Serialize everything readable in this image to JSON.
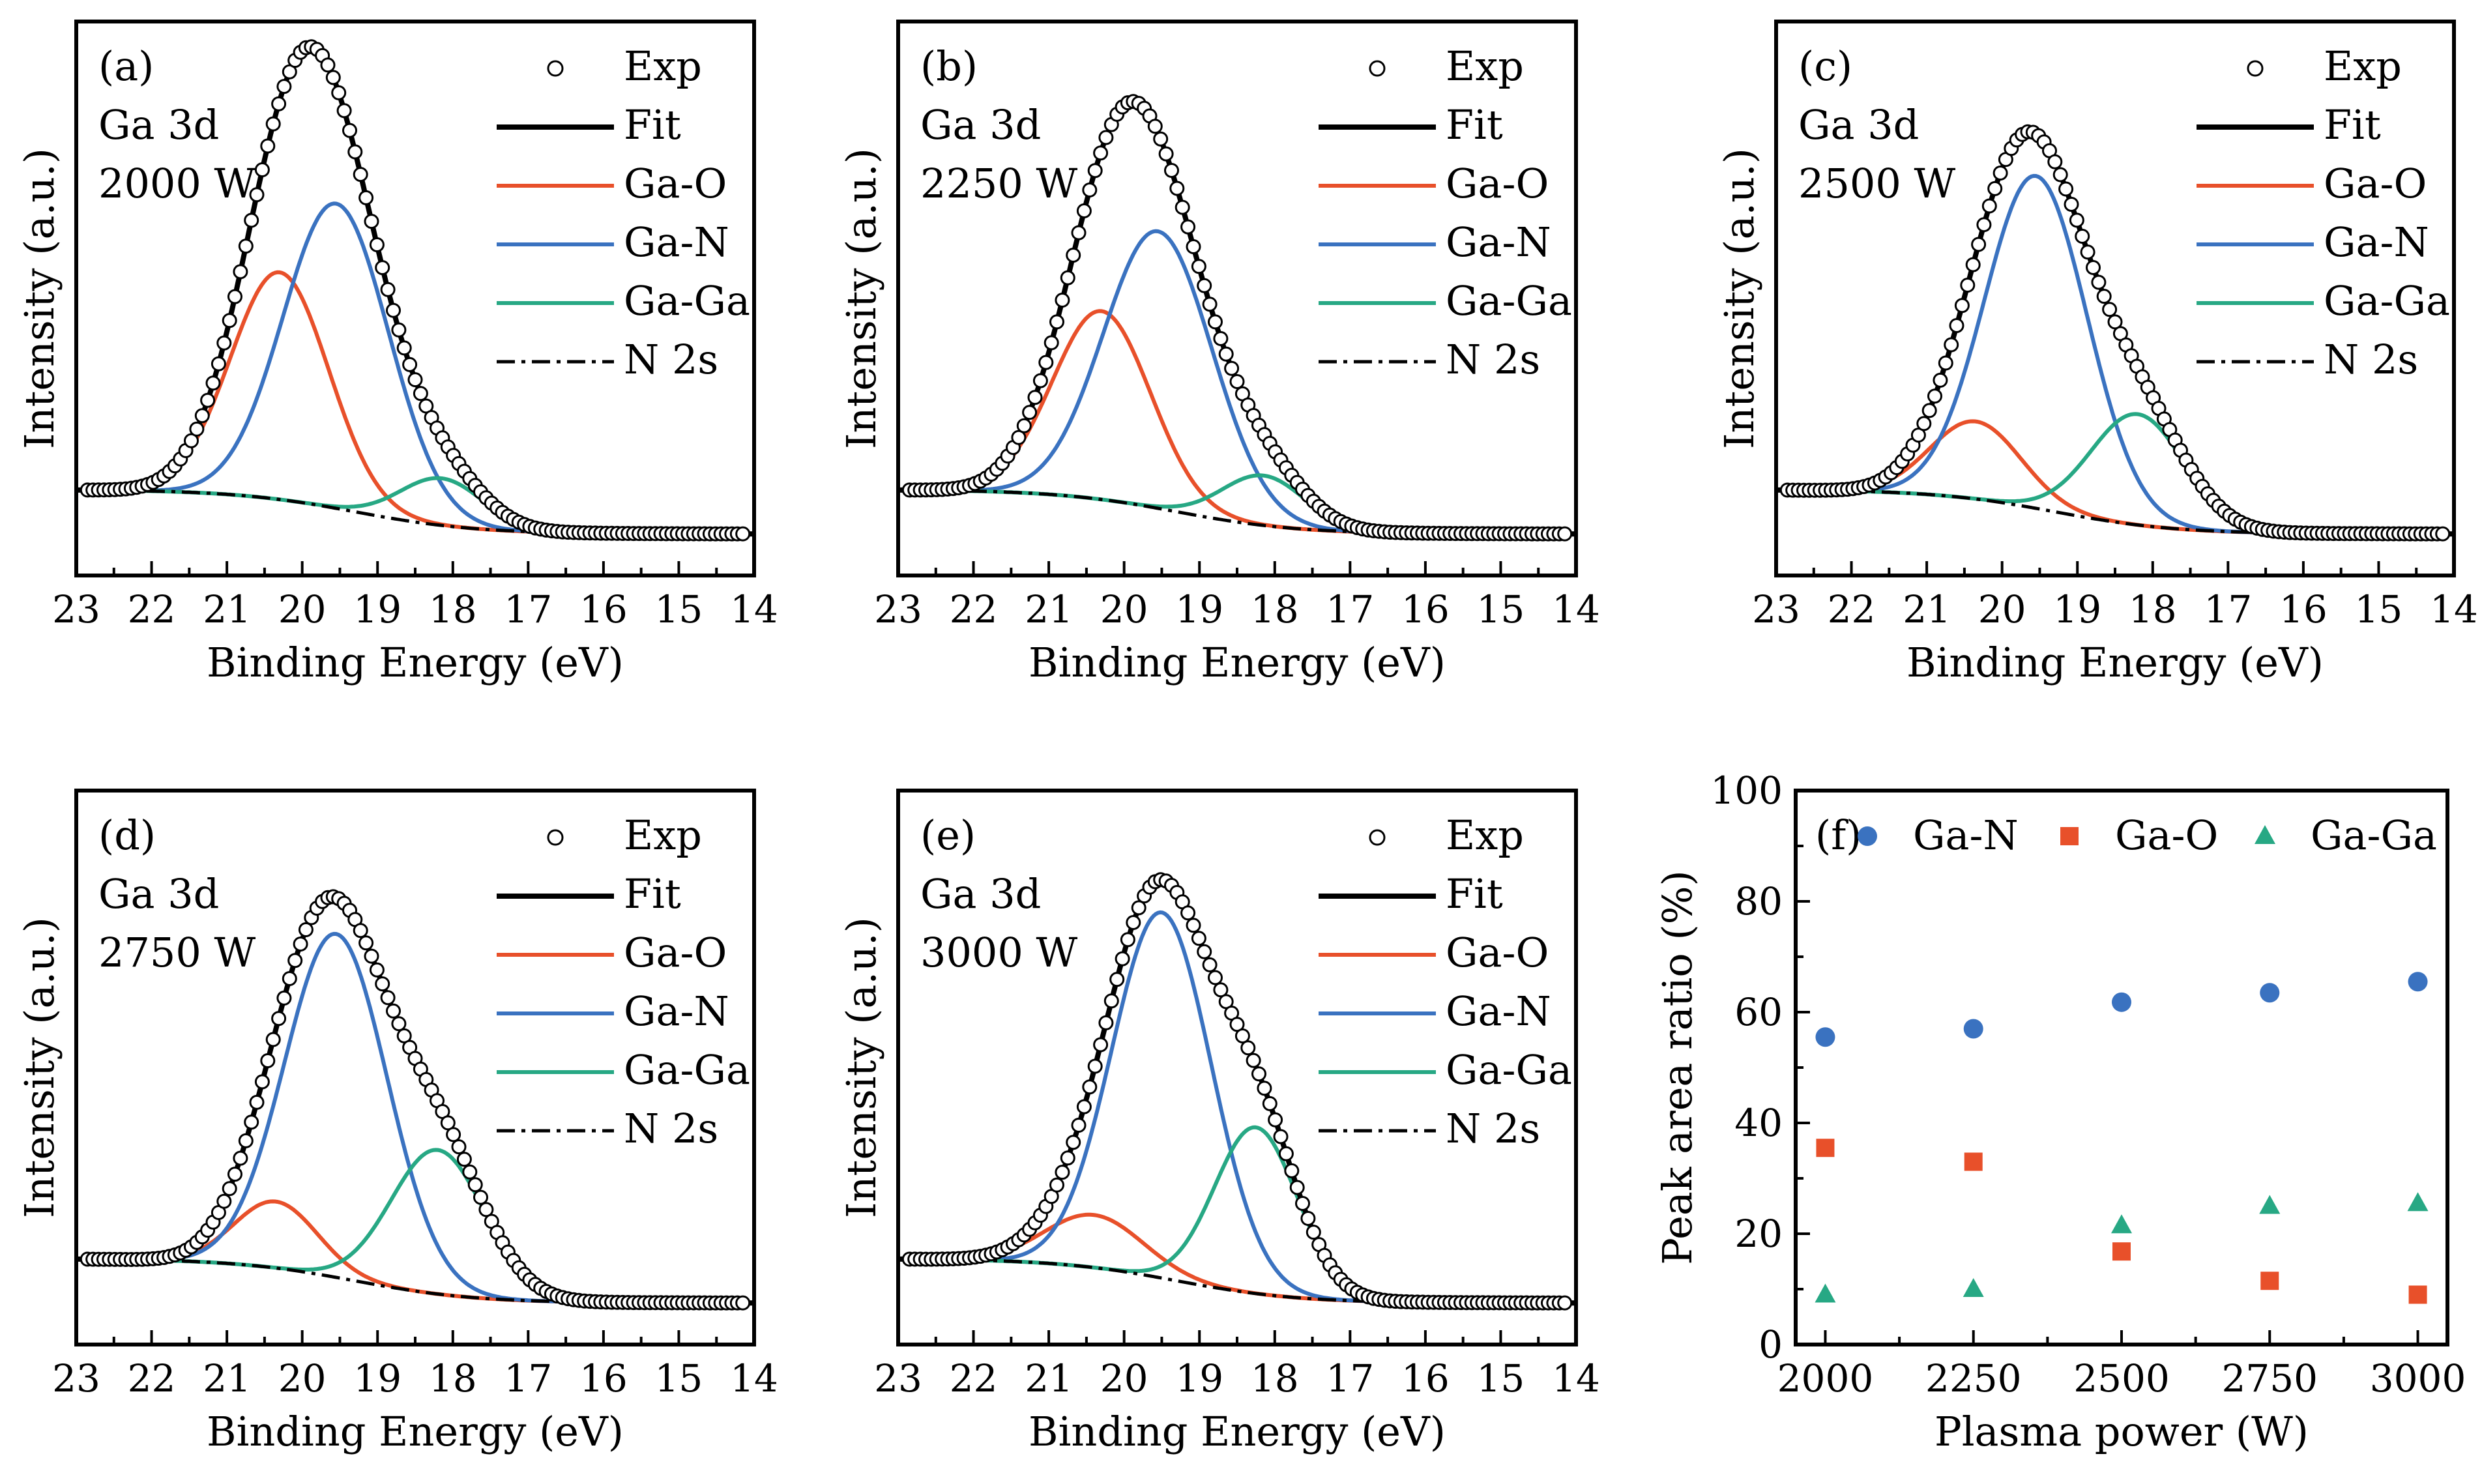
{
  "figure": {
    "colors": {
      "exp": "#000000",
      "fit": "#000000",
      "ga_o": "#e8502a",
      "ga_n": "#3a72c0",
      "ga_ga": "#27a884",
      "n2s": "#000000",
      "frame": "#000000"
    }
  },
  "chart_data": [
    {
      "type": "line",
      "panel": "(a)",
      "core_level": "Ga 3d",
      "power_label": "2000 W",
      "xlabel": "Binding Energy (eV)",
      "ylabel": "Intensity (a.u.)",
      "xlim": [
        23,
        14
      ],
      "ylim": [
        0,
        1
      ],
      "xticks": [
        "23",
        "22",
        "21",
        "20",
        "19",
        "18",
        "17",
        "16",
        "15",
        "14"
      ],
      "legend": [
        "Exp",
        "Fit",
        "Ga-O",
        "Ga-N",
        "Ga-Ga",
        "N 2s"
      ],
      "series": [
        {
          "name": "Ga-O",
          "center": 20.3,
          "height": 0.41,
          "width": 0.65
        },
        {
          "name": "Ga-N",
          "center": 19.55,
          "height": 0.55,
          "width": 0.7
        },
        {
          "name": "Ga-Ga",
          "center": 18.15,
          "height": 0.085,
          "width": 0.55
        }
      ],
      "background": {
        "name": "N 2s",
        "high": 0.155,
        "low": 0.075,
        "mid": 19.3,
        "step_width": 0.8
      }
    },
    {
      "type": "line",
      "panel": "(b)",
      "core_level": "Ga 3d",
      "power_label": "2250 W",
      "xlabel": "Binding Energy (eV)",
      "ylabel": "Intensity (a.u.)",
      "xlim": [
        23,
        14
      ],
      "ylim": [
        0,
        1
      ],
      "xticks": [
        "23",
        "22",
        "21",
        "20",
        "19",
        "18",
        "17",
        "16",
        "15",
        "14"
      ],
      "legend": [
        "Exp",
        "Fit",
        "Ga-O",
        "Ga-N",
        "Ga-Ga",
        "N 2s"
      ],
      "series": [
        {
          "name": "Ga-O",
          "center": 20.3,
          "height": 0.34,
          "width": 0.65
        },
        {
          "name": "Ga-N",
          "center": 19.55,
          "height": 0.5,
          "width": 0.72
        },
        {
          "name": "Ga-Ga",
          "center": 18.15,
          "height": 0.09,
          "width": 0.55
        }
      ],
      "background": {
        "name": "N 2s",
        "high": 0.155,
        "low": 0.075,
        "mid": 19.3,
        "step_width": 0.8
      }
    },
    {
      "type": "line",
      "panel": "(c)",
      "core_level": "Ga 3d",
      "power_label": "2500 W",
      "xlabel": "Binding Energy (eV)",
      "ylabel": "Intensity (a.u.)",
      "xlim": [
        23,
        14
      ],
      "ylim": [
        0,
        1
      ],
      "xticks": [
        "23",
        "22",
        "21",
        "20",
        "19",
        "18",
        "17",
        "16",
        "15",
        "14"
      ],
      "legend": [
        "Exp",
        "Fit",
        "Ga-O",
        "Ga-N",
        "Ga-Ga",
        "N 2s"
      ],
      "series": [
        {
          "name": "Ga-O",
          "center": 20.35,
          "height": 0.14,
          "width": 0.6
        },
        {
          "name": "Ga-N",
          "center": 19.55,
          "height": 0.6,
          "width": 0.68
        },
        {
          "name": "Ga-Ga",
          "center": 18.2,
          "height": 0.2,
          "width": 0.62
        }
      ],
      "background": {
        "name": "N 2s",
        "high": 0.155,
        "low": 0.075,
        "mid": 19.3,
        "step_width": 0.8
      }
    },
    {
      "type": "line",
      "panel": "(d)",
      "core_level": "Ga 3d",
      "power_label": "2750 W",
      "xlabel": "Binding Energy (eV)",
      "ylabel": "Intensity (a.u.)",
      "xlim": [
        23,
        14
      ],
      "ylim": [
        0,
        1
      ],
      "xticks": [
        "23",
        "22",
        "21",
        "20",
        "19",
        "18",
        "17",
        "16",
        "15",
        "14"
      ],
      "legend": [
        "Exp",
        "Fit",
        "Ga-O",
        "Ga-N",
        "Ga-Ga",
        "N 2s"
      ],
      "series": [
        {
          "name": "Ga-O",
          "center": 20.35,
          "height": 0.12,
          "width": 0.55
        },
        {
          "name": "Ga-N",
          "center": 19.55,
          "height": 0.62,
          "width": 0.68
        },
        {
          "name": "Ga-Ga",
          "center": 18.2,
          "height": 0.26,
          "width": 0.62
        }
      ],
      "background": {
        "name": "N 2s",
        "high": 0.155,
        "low": 0.075,
        "mid": 19.3,
        "step_width": 0.8
      }
    },
    {
      "type": "line",
      "panel": "(e)",
      "core_level": "Ga 3d",
      "power_label": "3000 W",
      "xlabel": "Binding Energy (eV)",
      "ylabel": "Intensity (a.u.)",
      "xlim": [
        23,
        14
      ],
      "ylim": [
        0,
        1
      ],
      "xticks": [
        "23",
        "22",
        "21",
        "20",
        "19",
        "18",
        "17",
        "16",
        "15",
        "14"
      ],
      "legend": [
        "Exp",
        "Fit",
        "Ga-O",
        "Ga-N",
        "Ga-Ga",
        "N 2s"
      ],
      "series": [
        {
          "name": "Ga-O",
          "center": 20.4,
          "height": 0.095,
          "width": 0.65
        },
        {
          "name": "Ga-N",
          "center": 19.5,
          "height": 0.66,
          "width": 0.66
        },
        {
          "name": "Ga-Ga",
          "center": 18.25,
          "height": 0.3,
          "width": 0.55
        }
      ],
      "background": {
        "name": "N 2s",
        "high": 0.155,
        "low": 0.075,
        "mid": 19.3,
        "step_width": 0.8
      }
    },
    {
      "type": "scatter",
      "panel": "(f)",
      "xlabel": "Plasma power (W)",
      "ylabel": "Peak area ratio (%)",
      "x": [
        2000,
        2250,
        2500,
        2750,
        3000
      ],
      "xlim": [
        1950,
        3050
      ],
      "ylim": [
        0,
        100
      ],
      "xticks": [
        2000,
        2250,
        2500,
        2750,
        3000
      ],
      "yticks": [
        0,
        20,
        40,
        60,
        80,
        100
      ],
      "series": [
        {
          "name": "Ga-N",
          "marker": "circle",
          "values": [
            55.5,
            57.0,
            61.8,
            63.5,
            65.5
          ]
        },
        {
          "name": "Ga-O",
          "marker": "square",
          "values": [
            35.5,
            33.0,
            16.8,
            11.5,
            9.0
          ]
        },
        {
          "name": "Ga-Ga",
          "marker": "triangle",
          "values": [
            9.0,
            10.0,
            21.5,
            25.0,
            25.5
          ]
        }
      ]
    }
  ]
}
